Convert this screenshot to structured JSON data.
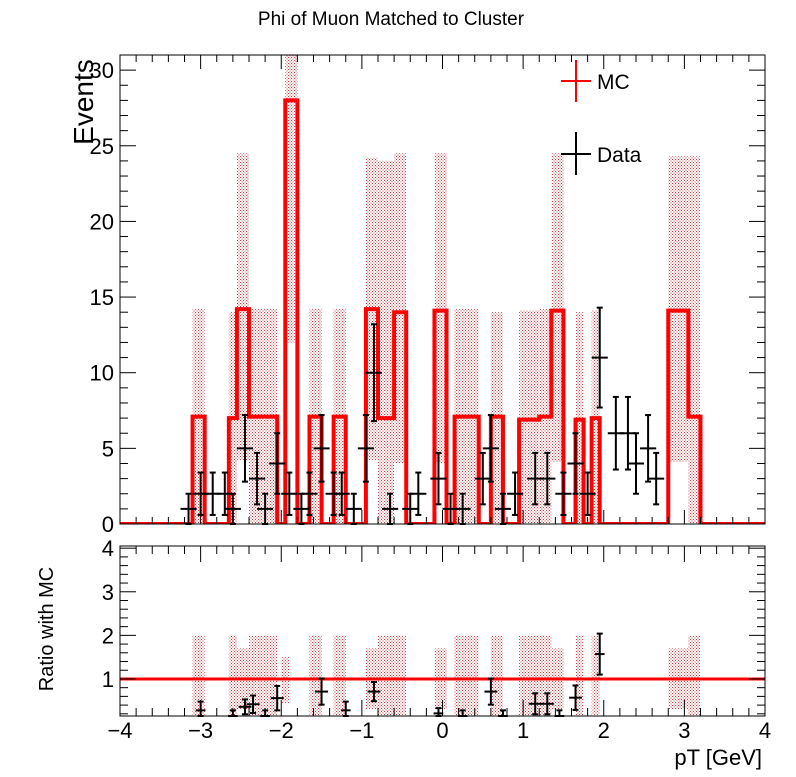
{
  "chart_data": [
    {
      "type": "histogram",
      "title": "Phi of Muon Matched to Cluster",
      "ylabel": "Events",
      "xlabel": "",
      "xlim": [
        -4,
        4
      ],
      "ylim": [
        0,
        31
      ],
      "yticks": [
        "0",
        "5",
        "10",
        "15",
        "20",
        "25",
        "30"
      ],
      "legend": {
        "placement": "top-right",
        "entries": [
          {
            "label": "MC",
            "color": "#ff0000"
          },
          {
            "label": "Data",
            "color": "#000000"
          }
        ]
      },
      "mc": {
        "name": "MC",
        "color": "#ff0000",
        "bins": [
          {
            "lo": -4.0,
            "hi": -3.1,
            "y": 0
          },
          {
            "lo": -3.1,
            "hi": -2.95,
            "y": 7.1
          },
          {
            "lo": -2.95,
            "hi": -2.65,
            "y": 0
          },
          {
            "lo": -2.65,
            "hi": -2.55,
            "y": 7.0
          },
          {
            "lo": -2.55,
            "hi": -2.4,
            "y": 14.2
          },
          {
            "lo": -2.4,
            "hi": -2.05,
            "y": 7.1
          },
          {
            "lo": -2.05,
            "hi": -1.95,
            "y": 0
          },
          {
            "lo": -1.95,
            "hi": -1.8,
            "y": 28.0
          },
          {
            "lo": -1.8,
            "hi": -1.65,
            "y": 0
          },
          {
            "lo": -1.65,
            "hi": -1.5,
            "y": 7.1
          },
          {
            "lo": -1.5,
            "hi": -1.35,
            "y": 0
          },
          {
            "lo": -1.35,
            "hi": -1.2,
            "y": 7.1
          },
          {
            "lo": -1.2,
            "hi": -0.95,
            "y": 0
          },
          {
            "lo": -0.95,
            "hi": -0.8,
            "y": 14.2
          },
          {
            "lo": -0.8,
            "hi": -0.6,
            "y": 7.0
          },
          {
            "lo": -0.6,
            "hi": -0.45,
            "y": 14.0
          },
          {
            "lo": -0.45,
            "hi": -0.1,
            "y": 0
          },
          {
            "lo": -0.1,
            "hi": 0.05,
            "y": 14.1
          },
          {
            "lo": 0.05,
            "hi": 0.15,
            "y": 0
          },
          {
            "lo": 0.15,
            "hi": 0.45,
            "y": 7.1
          },
          {
            "lo": 0.45,
            "hi": 0.6,
            "y": 0
          },
          {
            "lo": 0.6,
            "hi": 0.75,
            "y": 7.1
          },
          {
            "lo": 0.75,
            "hi": 0.95,
            "y": 0
          },
          {
            "lo": 0.95,
            "hi": 1.2,
            "y": 6.9
          },
          {
            "lo": 1.2,
            "hi": 1.35,
            "y": 7.1
          },
          {
            "lo": 1.35,
            "hi": 1.5,
            "y": 14.1
          },
          {
            "lo": 1.5,
            "hi": 1.65,
            "y": 0
          },
          {
            "lo": 1.65,
            "hi": 1.75,
            "y": 6.9
          },
          {
            "lo": 1.75,
            "hi": 1.85,
            "y": 0
          },
          {
            "lo": 1.85,
            "hi": 1.95,
            "y": 7.0
          },
          {
            "lo": 1.95,
            "hi": 2.8,
            "y": 0
          },
          {
            "lo": 2.8,
            "hi": 3.05,
            "y": 14.1
          },
          {
            "lo": 3.05,
            "hi": 3.2,
            "y": 7.1
          },
          {
            "lo": 3.2,
            "hi": 4.0,
            "y": 0
          }
        ],
        "error_bands": [
          {
            "lo": -3.1,
            "hi": -2.95,
            "ylo": 0,
            "yhi": 14.2
          },
          {
            "lo": -2.65,
            "hi": -2.55,
            "ylo": 0,
            "yhi": 14.0
          },
          {
            "lo": -2.55,
            "hi": -2.4,
            "ylo": 4.2,
            "yhi": 24.5
          },
          {
            "lo": -2.4,
            "hi": -2.05,
            "ylo": 0,
            "yhi": 14.2
          },
          {
            "lo": -1.95,
            "hi": -1.8,
            "ylo": 12.0,
            "yhi": 31.0
          },
          {
            "lo": -1.65,
            "hi": -1.5,
            "ylo": 0,
            "yhi": 14.2
          },
          {
            "lo": -1.35,
            "hi": -1.2,
            "ylo": 0,
            "yhi": 14.2
          },
          {
            "lo": -0.95,
            "hi": -0.8,
            "ylo": 4.2,
            "yhi": 24.2
          },
          {
            "lo": -0.8,
            "hi": -0.6,
            "ylo": 0,
            "yhi": 24.0
          },
          {
            "lo": -0.6,
            "hi": -0.45,
            "ylo": 4.0,
            "yhi": 24.5
          },
          {
            "lo": -0.1,
            "hi": 0.05,
            "ylo": 4.0,
            "yhi": 24.5
          },
          {
            "lo": 0.15,
            "hi": 0.45,
            "ylo": 0,
            "yhi": 14.2
          },
          {
            "lo": 0.6,
            "hi": 0.75,
            "ylo": 0,
            "yhi": 14.0
          },
          {
            "lo": 0.95,
            "hi": 1.2,
            "ylo": 0,
            "yhi": 14.1
          },
          {
            "lo": 1.2,
            "hi": 1.35,
            "ylo": 0,
            "yhi": 14.2
          },
          {
            "lo": 1.35,
            "hi": 1.5,
            "ylo": 4.1,
            "yhi": 24.5
          },
          {
            "lo": 1.65,
            "hi": 1.75,
            "ylo": 0,
            "yhi": 14.0
          },
          {
            "lo": 1.85,
            "hi": 1.95,
            "ylo": 0,
            "yhi": 14.1
          },
          {
            "lo": 2.8,
            "hi": 3.05,
            "ylo": 4.1,
            "yhi": 24.3
          },
          {
            "lo": 3.05,
            "hi": 3.2,
            "ylo": 0,
            "yhi": 24.3
          }
        ]
      },
      "data_points": {
        "name": "Data",
        "color": "#000000",
        "points": [
          {
            "x": -3.15,
            "y": 1,
            "xerr": 0.1,
            "yerr": 1.0
          },
          {
            "x": -3.0,
            "y": 2,
            "xerr": 0.1,
            "yerr": 1.4
          },
          {
            "x": -2.85,
            "y": 2,
            "xerr": 0.1,
            "yerr": 1.4
          },
          {
            "x": -2.7,
            "y": 2,
            "xerr": 0.1,
            "yerr": 1.4
          },
          {
            "x": -2.6,
            "y": 1,
            "xerr": 0.1,
            "yerr": 1.0
          },
          {
            "x": -2.45,
            "y": 5,
            "xerr": 0.1,
            "yerr": 2.2
          },
          {
            "x": -2.3,
            "y": 3,
            "xerr": 0.1,
            "yerr": 1.7
          },
          {
            "x": -2.2,
            "y": 1,
            "xerr": 0.1,
            "yerr": 1.0
          },
          {
            "x": -2.05,
            "y": 4,
            "xerr": 0.1,
            "yerr": 2.0
          },
          {
            "x": -1.9,
            "y": 2,
            "xerr": 0.1,
            "yerr": 1.4
          },
          {
            "x": -1.75,
            "y": 1,
            "xerr": 0.1,
            "yerr": 1.0
          },
          {
            "x": -1.65,
            "y": 2,
            "xerr": 0.1,
            "yerr": 1.4
          },
          {
            "x": -1.5,
            "y": 5,
            "xerr": 0.1,
            "yerr": 2.2
          },
          {
            "x": -1.35,
            "y": 2,
            "xerr": 0.1,
            "yerr": 1.4
          },
          {
            "x": -1.25,
            "y": 2,
            "xerr": 0.1,
            "yerr": 1.4
          },
          {
            "x": -1.1,
            "y": 1,
            "xerr": 0.1,
            "yerr": 1.0
          },
          {
            "x": -0.95,
            "y": 5,
            "xerr": 0.1,
            "yerr": 2.2
          },
          {
            "x": -0.85,
            "y": 10,
            "xerr": 0.1,
            "yerr": 3.2
          },
          {
            "x": -0.65,
            "y": 1,
            "xerr": 0.1,
            "yerr": 1.0
          },
          {
            "x": -0.4,
            "y": 1,
            "xerr": 0.1,
            "yerr": 1.0
          },
          {
            "x": -0.3,
            "y": 2,
            "xerr": 0.1,
            "yerr": 1.4
          },
          {
            "x": -0.05,
            "y": 3,
            "xerr": 0.1,
            "yerr": 1.7
          },
          {
            "x": 0.1,
            "y": 1,
            "xerr": 0.1,
            "yerr": 1.0
          },
          {
            "x": 0.25,
            "y": 1,
            "xerr": 0.1,
            "yerr": 1.0
          },
          {
            "x": 0.5,
            "y": 3,
            "xerr": 0.1,
            "yerr": 1.7
          },
          {
            "x": 0.6,
            "y": 5,
            "xerr": 0.1,
            "yerr": 2.2
          },
          {
            "x": 0.75,
            "y": 1,
            "xerr": 0.1,
            "yerr": 1.0
          },
          {
            "x": 0.9,
            "y": 2,
            "xerr": 0.1,
            "yerr": 1.4
          },
          {
            "x": 1.15,
            "y": 3,
            "xerr": 0.1,
            "yerr": 1.7
          },
          {
            "x": 1.3,
            "y": 3,
            "xerr": 0.1,
            "yerr": 1.7
          },
          {
            "x": 1.5,
            "y": 2,
            "xerr": 0.1,
            "yerr": 1.4
          },
          {
            "x": 1.65,
            "y": 4,
            "xerr": 0.1,
            "yerr": 2.0
          },
          {
            "x": 1.8,
            "y": 2,
            "xerr": 0.1,
            "yerr": 1.4
          },
          {
            "x": 1.95,
            "y": 11,
            "xerr": 0.1,
            "yerr": 3.3
          },
          {
            "x": 2.15,
            "y": 6,
            "xerr": 0.1,
            "yerr": 2.4
          },
          {
            "x": 2.3,
            "y": 6,
            "xerr": 0.1,
            "yerr": 2.4
          },
          {
            "x": 2.4,
            "y": 4,
            "xerr": 0.1,
            "yerr": 2.0
          },
          {
            "x": 2.55,
            "y": 5,
            "xerr": 0.1,
            "yerr": 2.2
          },
          {
            "x": 2.65,
            "y": 3,
            "xerr": 0.1,
            "yerr": 1.7
          }
        ]
      }
    },
    {
      "type": "ratio",
      "title": "",
      "ylabel": "Ratio with MC",
      "xlabel": "pT [GeV]",
      "xlim": [
        -4,
        4
      ],
      "ylim": [
        0.15,
        4.05
      ],
      "xticks": [
        "−4",
        "−3",
        "−2",
        "−1",
        "0",
        "1",
        "2",
        "3",
        "4"
      ],
      "yticks": [
        "1",
        "2",
        "3",
        "4"
      ],
      "reference_line": 1,
      "error_bands": [
        {
          "lo": -3.1,
          "hi": -2.95,
          "ylo": 0,
          "yhi": 2.0
        },
        {
          "lo": -2.65,
          "hi": -2.55,
          "ylo": 0,
          "yhi": 2.0
        },
        {
          "lo": -2.55,
          "hi": -2.4,
          "ylo": 0.3,
          "yhi": 1.7
        },
        {
          "lo": -2.4,
          "hi": -2.05,
          "ylo": 0,
          "yhi": 2.0
        },
        {
          "lo": -2.0,
          "hi": -1.9,
          "ylo": 0.45,
          "yhi": 1.5
        },
        {
          "lo": -1.65,
          "hi": -1.5,
          "ylo": 0,
          "yhi": 2.0
        },
        {
          "lo": -1.35,
          "hi": -1.2,
          "ylo": 0,
          "yhi": 2.0
        },
        {
          "lo": -0.95,
          "hi": -0.8,
          "ylo": 0.3,
          "yhi": 1.7
        },
        {
          "lo": -0.8,
          "hi": -0.45,
          "ylo": 0,
          "yhi": 2.0
        },
        {
          "lo": -0.1,
          "hi": 0.05,
          "ylo": 0.3,
          "yhi": 1.7
        },
        {
          "lo": 0.15,
          "hi": 0.45,
          "ylo": 0,
          "yhi": 2.0
        },
        {
          "lo": 0.6,
          "hi": 0.75,
          "ylo": 0,
          "yhi": 2.0
        },
        {
          "lo": 0.95,
          "hi": 1.35,
          "ylo": 0,
          "yhi": 2.0
        },
        {
          "lo": 1.35,
          "hi": 1.5,
          "ylo": 0.3,
          "yhi": 1.7
        },
        {
          "lo": 1.65,
          "hi": 1.75,
          "ylo": 0,
          "yhi": 2.0
        },
        {
          "lo": 1.85,
          "hi": 1.95,
          "ylo": 0,
          "yhi": 2.0
        },
        {
          "lo": 2.8,
          "hi": 3.05,
          "ylo": 0.3,
          "yhi": 1.7
        },
        {
          "lo": 3.05,
          "hi": 3.2,
          "ylo": 0,
          "yhi": 2.0
        }
      ],
      "points": [
        {
          "x": -3.0,
          "y": 0.28,
          "xerr": 0.06,
          "yerr": 0.2
        },
        {
          "x": -2.6,
          "y": 0.14,
          "xerr": 0.06,
          "yerr": 0.14
        },
        {
          "x": -2.45,
          "y": 0.36,
          "xerr": 0.08,
          "yerr": 0.17
        },
        {
          "x": -2.35,
          "y": 0.42,
          "xerr": 0.08,
          "yerr": 0.2
        },
        {
          "x": -2.2,
          "y": 0.14,
          "xerr": 0.06,
          "yerr": 0.14
        },
        {
          "x": -2.05,
          "y": 0.56,
          "xerr": 0.08,
          "yerr": 0.28
        },
        {
          "x": -1.5,
          "y": 0.71,
          "xerr": 0.08,
          "yerr": 0.3
        },
        {
          "x": -1.2,
          "y": 0.28,
          "xerr": 0.06,
          "yerr": 0.2
        },
        {
          "x": -0.85,
          "y": 0.71,
          "xerr": 0.08,
          "yerr": 0.22
        },
        {
          "x": -0.05,
          "y": 0.21,
          "xerr": 0.06,
          "yerr": 0.12
        },
        {
          "x": 0.25,
          "y": 0.14,
          "xerr": 0.06,
          "yerr": 0.14
        },
        {
          "x": 0.6,
          "y": 0.71,
          "xerr": 0.08,
          "yerr": 0.3
        },
        {
          "x": 0.75,
          "y": 0.14,
          "xerr": 0.06,
          "yerr": 0.14
        },
        {
          "x": 1.15,
          "y": 0.43,
          "xerr": 0.08,
          "yerr": 0.24
        },
        {
          "x": 1.3,
          "y": 0.43,
          "xerr": 0.08,
          "yerr": 0.24
        },
        {
          "x": 1.45,
          "y": 0.14,
          "xerr": 0.06,
          "yerr": 0.14
        },
        {
          "x": 1.65,
          "y": 0.57,
          "xerr": 0.08,
          "yerr": 0.28
        },
        {
          "x": 1.95,
          "y": 1.57,
          "xerr": 0.06,
          "yerr": 0.47
        }
      ]
    }
  ]
}
